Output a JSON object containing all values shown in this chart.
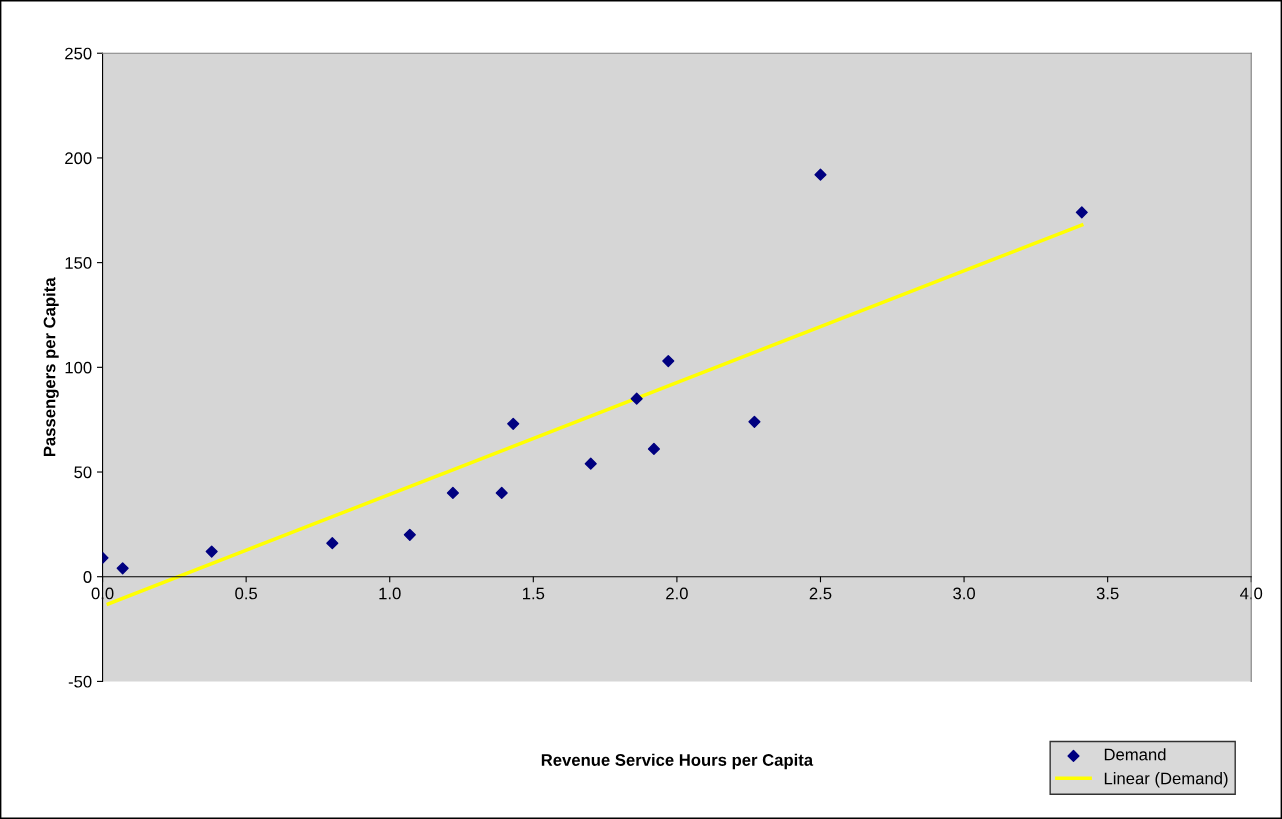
{
  "chart_data": {
    "type": "scatter",
    "xlabel": "Revenue Service Hours per Capita",
    "ylabel": "Passengers per Capita",
    "xlim": [
      0,
      4
    ],
    "xticks": [
      {
        "value": 0,
        "label": "0.0"
      },
      0.5,
      {
        "value": 1,
        "label": "1.0"
      },
      1.5,
      {
        "value": 2,
        "label": "2.0"
      },
      2.5,
      {
        "value": 3,
        "label": "3.0"
      },
      3.5,
      {
        "value": 4,
        "label": "4.0"
      }
    ],
    "ylim": [
      -50,
      250
    ],
    "yticks": [
      -50,
      0,
      50,
      100,
      150,
      200,
      250
    ],
    "grid": false,
    "legend": "bottom right",
    "series": [
      {
        "name": "Demand",
        "color": "#000080",
        "marker": "diamond",
        "x": [
          0.0,
          0.07,
          0.38,
          0.8,
          1.07,
          1.22,
          1.39,
          1.43,
          1.7,
          1.86,
          1.92,
          1.97,
          2.27,
          2.5,
          3.41
        ],
        "values": [
          9,
          4,
          12,
          16,
          20,
          40,
          40,
          73,
          54,
          85,
          61,
          103,
          74,
          192,
          174
        ]
      },
      {
        "name": "Linear (Demand)",
        "type": "line",
        "color": "#ffff00",
        "line_style": "solid",
        "x": [
          0.02,
          3.41
        ],
        "values": [
          -13,
          168
        ]
      }
    ]
  }
}
